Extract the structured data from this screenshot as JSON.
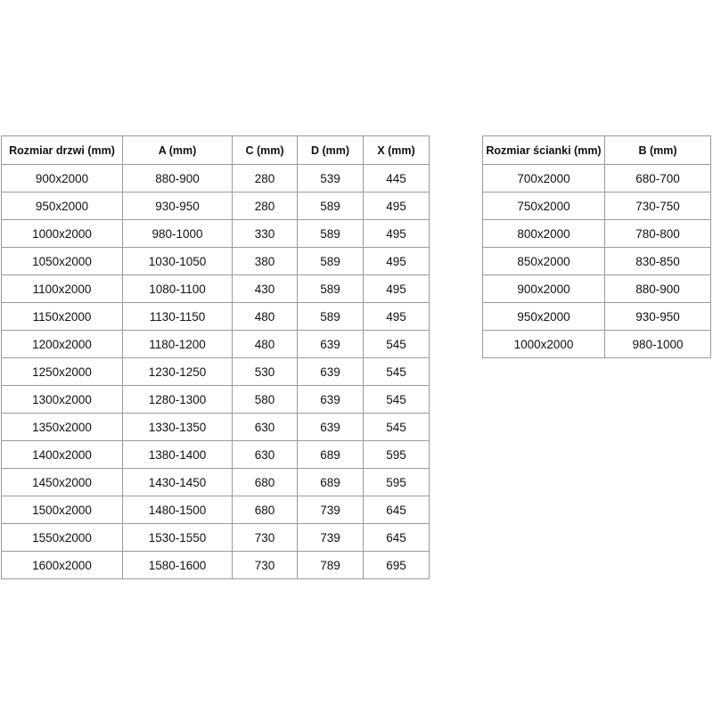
{
  "door_table": {
    "headers": [
      "Rozmiar drzwi (mm)",
      "A (mm)",
      "C (mm)",
      "D (mm)",
      "X (mm)"
    ],
    "rows": [
      [
        "900x2000",
        "880-900",
        "280",
        "539",
        "445"
      ],
      [
        "950x2000",
        "930-950",
        "280",
        "589",
        "495"
      ],
      [
        "1000x2000",
        "980-1000",
        "330",
        "589",
        "495"
      ],
      [
        "1050x2000",
        "1030-1050",
        "380",
        "589",
        "495"
      ],
      [
        "1100x2000",
        "1080-1100",
        "430",
        "589",
        "495"
      ],
      [
        "1150x2000",
        "1130-1150",
        "480",
        "589",
        "495"
      ],
      [
        "1200x2000",
        "1180-1200",
        "480",
        "639",
        "545"
      ],
      [
        "1250x2000",
        "1230-1250",
        "530",
        "639",
        "545"
      ],
      [
        "1300x2000",
        "1280-1300",
        "580",
        "639",
        "545"
      ],
      [
        "1350x2000",
        "1330-1350",
        "630",
        "639",
        "545"
      ],
      [
        "1400x2000",
        "1380-1400",
        "630",
        "689",
        "595"
      ],
      [
        "1450x2000",
        "1430-1450",
        "680",
        "689",
        "595"
      ],
      [
        "1500x2000",
        "1480-1500",
        "680",
        "739",
        "645"
      ],
      [
        "1550x2000",
        "1530-1550",
        "730",
        "739",
        "645"
      ],
      [
        "1600x2000",
        "1580-1600",
        "730",
        "789",
        "695"
      ]
    ]
  },
  "wall_table": {
    "headers": [
      "Rozmiar ścianki (mm)",
      "B (mm)"
    ],
    "rows": [
      [
        "700x2000",
        "680-700"
      ],
      [
        "750x2000",
        "730-750"
      ],
      [
        "800x2000",
        "780-800"
      ],
      [
        "850x2000",
        "830-850"
      ],
      [
        "900x2000",
        "880-900"
      ],
      [
        "950x2000",
        "930-950"
      ],
      [
        "1000x2000",
        "980-1000"
      ]
    ]
  }
}
